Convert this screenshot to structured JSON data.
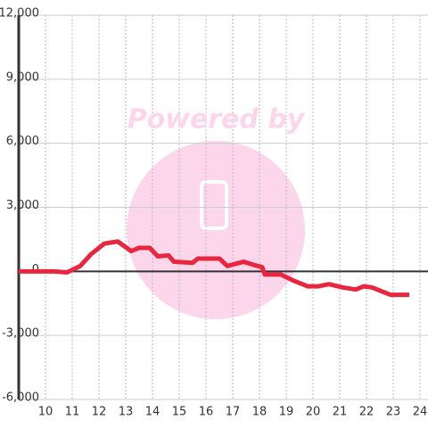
{
  "chart_data": {
    "type": "line",
    "annotation": "Powered by",
    "x": [
      9,
      10.3,
      10.8,
      11.3,
      11.7,
      12.2,
      12.7,
      13.2,
      13.5,
      13.9,
      14.2,
      14.6,
      14.8,
      15.5,
      15.7,
      16.5,
      16.8,
      17.4,
      17.8,
      18.1,
      18.2,
      18.8,
      19.3,
      19.8,
      20.2,
      20.6,
      21.1,
      21.6,
      21.9,
      22.2,
      22.6,
      22.9,
      23.6
    ],
    "series": [
      {
        "color": "#e8263f",
        "values": [
          0,
          0,
          -50,
          250,
          800,
          1300,
          1400,
          950,
          1100,
          1100,
          700,
          750,
          450,
          400,
          600,
          600,
          250,
          450,
          300,
          200,
          -150,
          -150,
          -450,
          -700,
          -700,
          -600,
          -750,
          -850,
          -700,
          -750,
          -950,
          -1100,
          -1100
        ]
      }
    ],
    "xlim": [
      9,
      24.3
    ],
    "xticks": [
      10,
      11,
      12,
      13,
      14,
      15,
      16,
      17,
      18,
      19,
      20,
      21,
      22,
      23,
      24
    ],
    "ylim": [
      -6000,
      12000
    ],
    "yticks": [
      {
        "value": -6000,
        "label": "-6,000"
      },
      {
        "value": -3000,
        "label": "-3,000"
      },
      0,
      {
        "value": 3000,
        "label": "3,000"
      },
      {
        "value": 6000,
        "label": "6,000"
      },
      {
        "value": 9000,
        "label": "9,000"
      },
      {
        "value": 12000,
        "label": "12,000"
      }
    ],
    "grid": true
  }
}
